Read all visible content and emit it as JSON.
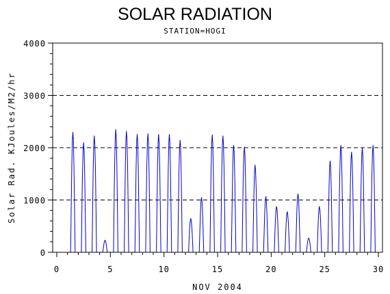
{
  "chart_data": {
    "type": "line",
    "title": "SOLAR RADIATION",
    "subtitle": "STATION=HOGI",
    "xlabel": "NOV 2004",
    "ylabel": "Solar Rad. KJoules/M2/hr",
    "xlim": [
      0,
      30
    ],
    "ylim": [
      0,
      4000
    ],
    "x_ticks": [
      0,
      5,
      10,
      15,
      20,
      25,
      30
    ],
    "x_tick_labels": [
      "0",
      "5",
      "10",
      "15",
      "20",
      "25",
      "30"
    ],
    "y_ticks": [
      0,
      1000,
      2000,
      3000,
      4000
    ],
    "y_tick_labels": [
      "0",
      "1000",
      "2000",
      "3000",
      "4000"
    ],
    "grid": "horizontal dashed at 1000, 3000, 4000",
    "line_color": "#0000cc",
    "daily_peaks": [
      {
        "day": 1,
        "peak": 2300
      },
      {
        "day": 2,
        "peak": 2100
      },
      {
        "day": 3,
        "peak": 2230
      },
      {
        "day": 4,
        "peak": 230
      },
      {
        "day": 5,
        "peak": 2350
      },
      {
        "day": 6,
        "peak": 2320
      },
      {
        "day": 7,
        "peak": 2260
      },
      {
        "day": 8,
        "peak": 2270
      },
      {
        "day": 9,
        "peak": 2260
      },
      {
        "day": 10,
        "peak": 2260
      },
      {
        "day": 11,
        "peak": 2150
      },
      {
        "day": 12,
        "peak": 650
      },
      {
        "day": 13,
        "peak": 1050
      },
      {
        "day": 14,
        "peak": 2250
      },
      {
        "day": 15,
        "peak": 2230
      },
      {
        "day": 16,
        "peak": 2050
      },
      {
        "day": 17,
        "peak": 2020
      },
      {
        "day": 18,
        "peak": 1670
      },
      {
        "day": 19,
        "peak": 1070
      },
      {
        "day": 20,
        "peak": 880
      },
      {
        "day": 21,
        "peak": 780
      },
      {
        "day": 22,
        "peak": 1120
      },
      {
        "day": 23,
        "peak": 270
      },
      {
        "day": 24,
        "peak": 880
      },
      {
        "day": 25,
        "peak": 1750
      },
      {
        "day": 26,
        "peak": 2050
      },
      {
        "day": 27,
        "peak": 1920
      },
      {
        "day": 28,
        "peak": 2000
      },
      {
        "day": 29,
        "peak": 2050
      }
    ]
  }
}
